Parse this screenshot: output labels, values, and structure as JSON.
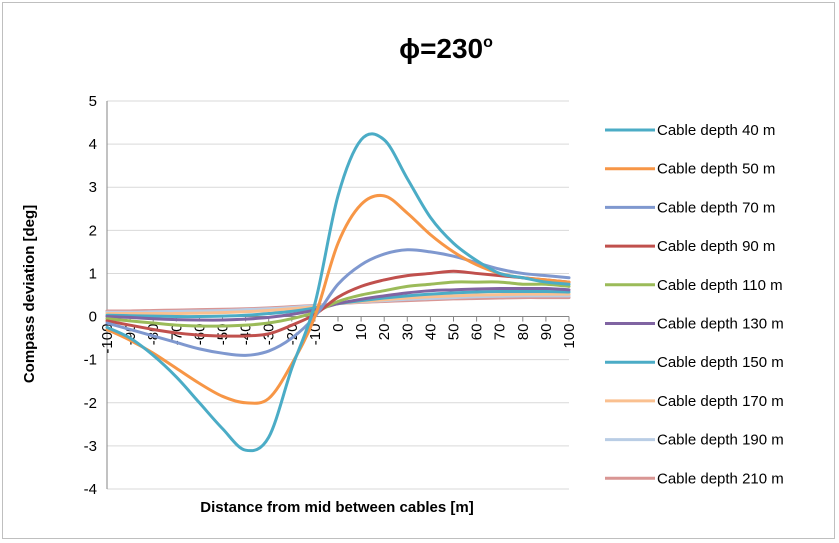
{
  "chart_data": {
    "type": "line",
    "title": "ϕ=230",
    "title_superscript": "o",
    "xlabel": "Distance from mid between cables [m]",
    "ylabel": "Compass deviation [deg]",
    "ylim": [
      -4,
      5
    ],
    "y_ticks": [
      -4,
      -3,
      -2,
      -1,
      0,
      1,
      2,
      3,
      4,
      5
    ],
    "x_ticks": [
      -100,
      -90,
      -80,
      -70,
      -60,
      -50,
      -40,
      -30,
      -20,
      -10,
      0,
      10,
      20,
      30,
      40,
      50,
      60,
      70,
      80,
      90,
      100
    ],
    "x": [
      -100,
      -90,
      -80,
      -70,
      -60,
      -50,
      -40,
      -30,
      -20,
      -10,
      0,
      10,
      20,
      30,
      40,
      50,
      60,
      70,
      80,
      90,
      100
    ],
    "grid": "horizontal",
    "legend_position": "right",
    "series": [
      {
        "name": "Cable depth 40 m",
        "color": "#4BACC6",
        "values": [
          -0.25,
          -0.5,
          -0.9,
          -1.4,
          -2.0,
          -2.6,
          -3.1,
          -2.8,
          -1.2,
          0.3,
          2.8,
          4.1,
          4.1,
          3.2,
          2.3,
          1.7,
          1.3,
          1.0,
          0.9,
          0.8,
          0.75
        ]
      },
      {
        "name": "Cable depth 50 m",
        "color": "#F79646",
        "values": [
          -0.3,
          -0.55,
          -0.85,
          -1.2,
          -1.55,
          -1.85,
          -2.0,
          -1.9,
          -1.1,
          0.0,
          1.7,
          2.6,
          2.8,
          2.4,
          1.9,
          1.5,
          1.2,
          1.0,
          0.9,
          0.85,
          0.8
        ]
      },
      {
        "name": "Cable depth 70 m",
        "color": "#7F98CF",
        "values": [
          -0.15,
          -0.3,
          -0.45,
          -0.6,
          -0.75,
          -0.85,
          -0.9,
          -0.8,
          -0.5,
          0.0,
          0.75,
          1.2,
          1.45,
          1.55,
          1.5,
          1.4,
          1.25,
          1.1,
          1.0,
          0.95,
          0.9
        ]
      },
      {
        "name": "Cable depth 90 m",
        "color": "#C0504D",
        "values": [
          -0.1,
          -0.2,
          -0.3,
          -0.38,
          -0.43,
          -0.45,
          -0.45,
          -0.4,
          -0.2,
          0.05,
          0.45,
          0.7,
          0.85,
          0.95,
          1.0,
          1.05,
          1.0,
          0.95,
          0.9,
          0.85,
          0.8
        ]
      },
      {
        "name": "Cable depth 110 m",
        "color": "#9BBB59",
        "values": [
          -0.05,
          -0.1,
          -0.15,
          -0.2,
          -0.22,
          -0.22,
          -0.2,
          -0.15,
          -0.05,
          0.1,
          0.35,
          0.5,
          0.6,
          0.7,
          0.75,
          0.8,
          0.8,
          0.8,
          0.75,
          0.75,
          0.7
        ]
      },
      {
        "name": "Cable depth 130 m",
        "color": "#8064A2",
        "values": [
          0.0,
          -0.02,
          -0.05,
          -0.07,
          -0.08,
          -0.08,
          -0.06,
          -0.02,
          0.05,
          0.15,
          0.3,
          0.4,
          0.48,
          0.55,
          0.6,
          0.62,
          0.64,
          0.65,
          0.65,
          0.65,
          0.62
        ]
      },
      {
        "name": "Cable depth 150 m",
        "color": "#4BACC6",
        "values": [
          0.03,
          0.02,
          0.01,
          0.0,
          0.0,
          0.01,
          0.03,
          0.07,
          0.12,
          0.2,
          0.3,
          0.37,
          0.43,
          0.48,
          0.52,
          0.55,
          0.57,
          0.58,
          0.58,
          0.58,
          0.57
        ]
      },
      {
        "name": "Cable depth 170 m",
        "color": "#FAC090",
        "values": [
          0.07,
          0.07,
          0.07,
          0.07,
          0.08,
          0.09,
          0.11,
          0.14,
          0.18,
          0.23,
          0.3,
          0.35,
          0.39,
          0.43,
          0.46,
          0.48,
          0.5,
          0.51,
          0.52,
          0.52,
          0.52
        ]
      },
      {
        "name": "Cable depth 190 m",
        "color": "#B9CDE5",
        "values": [
          0.1,
          0.1,
          0.11,
          0.12,
          0.13,
          0.14,
          0.16,
          0.18,
          0.21,
          0.25,
          0.3,
          0.34,
          0.37,
          0.4,
          0.42,
          0.44,
          0.46,
          0.47,
          0.48,
          0.48,
          0.48
        ]
      },
      {
        "name": "Cable depth 210 m",
        "color": "#D99694",
        "values": [
          0.13,
          0.13,
          0.14,
          0.15,
          0.16,
          0.17,
          0.18,
          0.2,
          0.23,
          0.26,
          0.3,
          0.33,
          0.35,
          0.37,
          0.39,
          0.41,
          0.42,
          0.43,
          0.44,
          0.44,
          0.44
        ]
      }
    ]
  }
}
